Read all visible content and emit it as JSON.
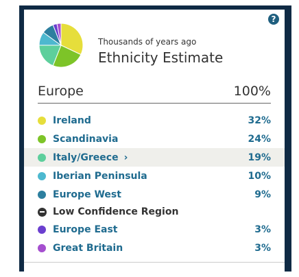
{
  "header": {
    "subtitle": "Thousands of years ago",
    "title": "Ethnicity Estimate"
  },
  "pie": {
    "slices": [
      {
        "share": 32,
        "color": "#e6de3b"
      },
      {
        "share": 24,
        "color": "#7dc428"
      },
      {
        "share": 19,
        "color": "#5dcf9c"
      },
      {
        "share": 10,
        "color": "#4db8cf"
      },
      {
        "share": 9,
        "color": "#2d7f9f"
      },
      {
        "share": 3,
        "color": "#6b3fcf"
      },
      {
        "share": 3,
        "color": "#a54fcf"
      }
    ]
  },
  "region": {
    "name": "Europe",
    "total": "100%"
  },
  "rows": [
    {
      "label": "Ireland",
      "pct": "32%",
      "color": "#e6de3b"
    },
    {
      "label": "Scandinavia",
      "pct": "24%",
      "color": "#7dc428"
    },
    {
      "label": "Italy/Greece",
      "pct": "19%",
      "color": "#5dcf9c",
      "chevron": "›"
    },
    {
      "label": "Iberian Peninsula",
      "pct": "10%",
      "color": "#4db8cf"
    },
    {
      "label": "Europe West",
      "pct": "9%",
      "color": "#2d7f9f"
    },
    {
      "label": "Low Confidence Region"
    },
    {
      "label": "Europe East",
      "pct": "3%",
      "color": "#6b3fcf"
    },
    {
      "label": "Great Britain",
      "pct": "3%",
      "color": "#a54fcf"
    }
  ],
  "help": {
    "glyph": "?"
  }
}
